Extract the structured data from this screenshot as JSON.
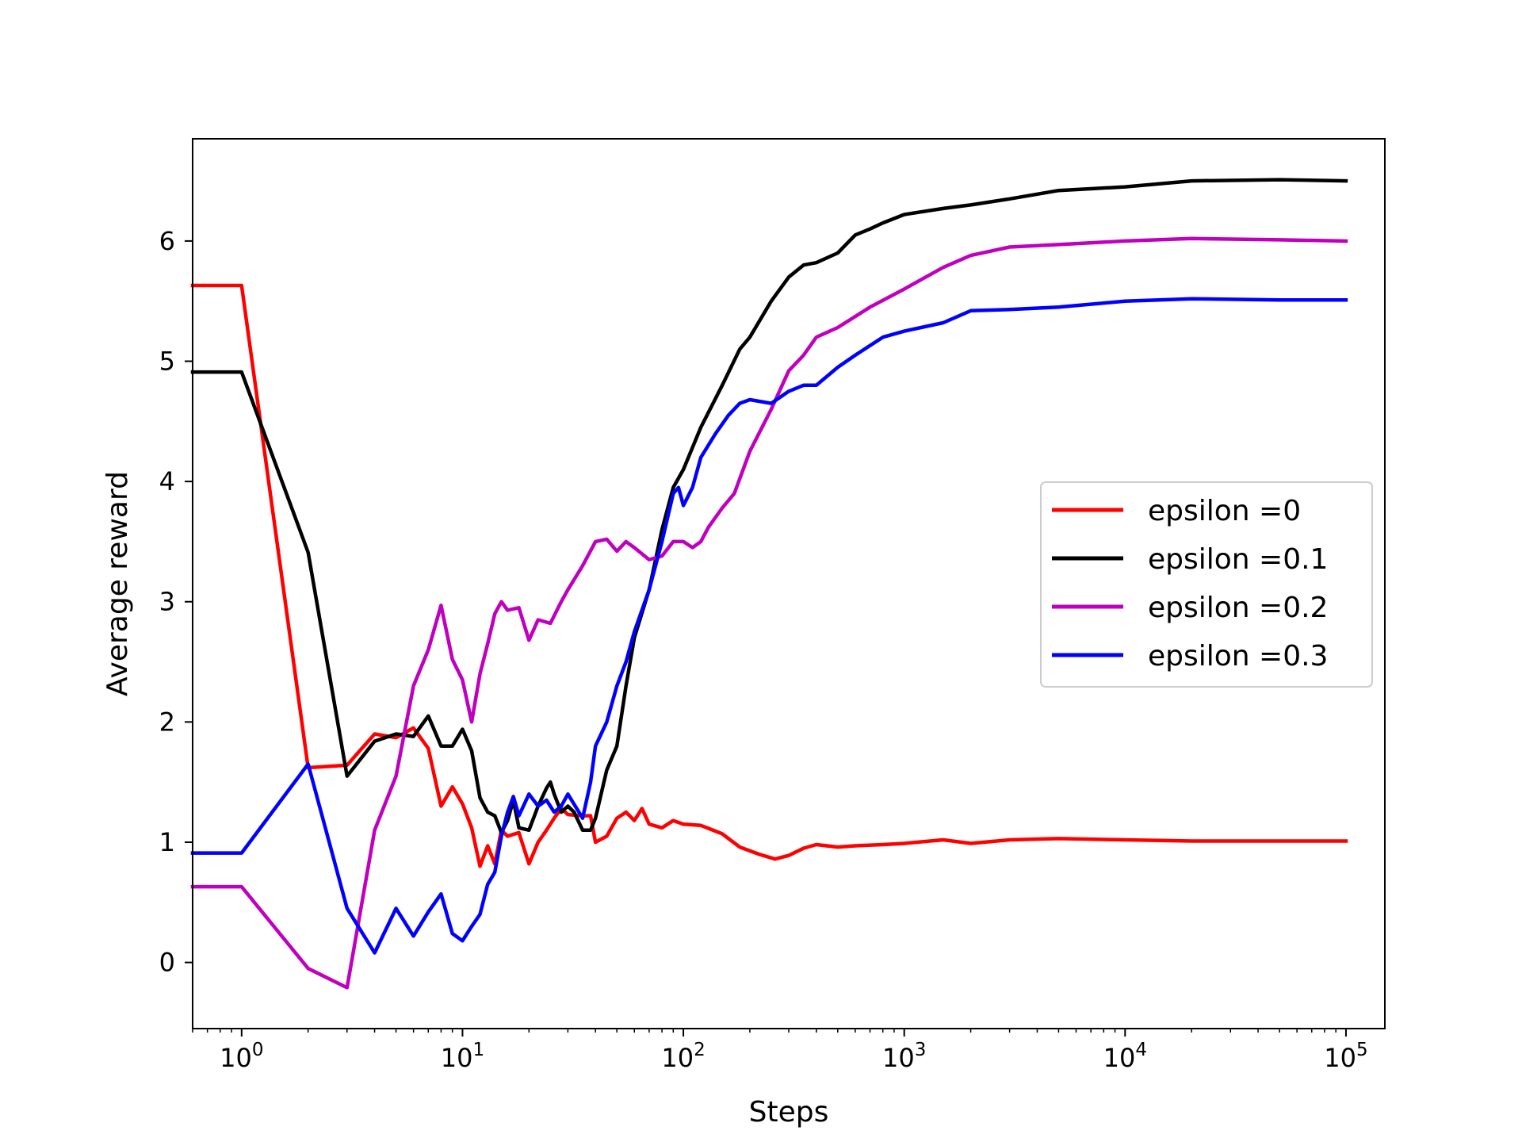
{
  "chart_data": {
    "type": "line",
    "title": "",
    "xlabel": "Steps",
    "ylabel": "Average reward",
    "xscale": "log",
    "xlim": [
      0.6,
      150000
    ],
    "ylim": [
      -0.55,
      6.85
    ],
    "xticks": [
      {
        "value": 1,
        "base": "10",
        "exp": "0"
      },
      {
        "value": 10,
        "base": "10",
        "exp": "1"
      },
      {
        "value": 100,
        "base": "10",
        "exp": "2"
      },
      {
        "value": 1000,
        "base": "10",
        "exp": "3"
      },
      {
        "value": 10000,
        "base": "10",
        "exp": "4"
      },
      {
        "value": 100000,
        "base": "10",
        "exp": "5"
      }
    ],
    "yticks": [
      {
        "value": 0,
        "label": "0"
      },
      {
        "value": 1,
        "label": "1"
      },
      {
        "value": 2,
        "label": "2"
      },
      {
        "value": 3,
        "label": "3"
      },
      {
        "value": 4,
        "label": "4"
      },
      {
        "value": 5,
        "label": "5"
      },
      {
        "value": 6,
        "label": "6"
      }
    ],
    "grid": false,
    "legend_position": "center-right",
    "series": [
      {
        "name": "epsilon =0",
        "color": "#ff0000",
        "points": [
          [
            0.6,
            5.63
          ],
          [
            1,
            5.63
          ],
          [
            2,
            1.62
          ],
          [
            3,
            1.64
          ],
          [
            4,
            1.9
          ],
          [
            5,
            1.87
          ],
          [
            6,
            1.95
          ],
          [
            7,
            1.78
          ],
          [
            8,
            1.3
          ],
          [
            9,
            1.46
          ],
          [
            10,
            1.32
          ],
          [
            11,
            1.12
          ],
          [
            12,
            0.8
          ],
          [
            13,
            0.97
          ],
          [
            14,
            0.82
          ],
          [
            15,
            1.1
          ],
          [
            16,
            1.05
          ],
          [
            18,
            1.08
          ],
          [
            20,
            0.82
          ],
          [
            22,
            1.0
          ],
          [
            24,
            1.1
          ],
          [
            26,
            1.2
          ],
          [
            28,
            1.28
          ],
          [
            30,
            1.23
          ],
          [
            35,
            1.22
          ],
          [
            38,
            1.22
          ],
          [
            40,
            1.0
          ],
          [
            45,
            1.05
          ],
          [
            50,
            1.2
          ],
          [
            55,
            1.25
          ],
          [
            60,
            1.18
          ],
          [
            65,
            1.28
          ],
          [
            70,
            1.15
          ],
          [
            80,
            1.12
          ],
          [
            90,
            1.18
          ],
          [
            100,
            1.15
          ],
          [
            120,
            1.14
          ],
          [
            150,
            1.07
          ],
          [
            180,
            0.96
          ],
          [
            220,
            0.9
          ],
          [
            260,
            0.86
          ],
          [
            300,
            0.89
          ],
          [
            350,
            0.95
          ],
          [
            400,
            0.98
          ],
          [
            500,
            0.96
          ],
          [
            600,
            0.97
          ],
          [
            800,
            0.98
          ],
          [
            1000,
            0.99
          ],
          [
            1500,
            1.02
          ],
          [
            2000,
            0.99
          ],
          [
            3000,
            1.02
          ],
          [
            5000,
            1.03
          ],
          [
            10000,
            1.02
          ],
          [
            20000,
            1.01
          ],
          [
            50000,
            1.01
          ],
          [
            100000,
            1.01
          ]
        ]
      },
      {
        "name": "epsilon =0.1",
        "color": "#000000",
        "points": [
          [
            0.6,
            4.91
          ],
          [
            1,
            4.91
          ],
          [
            2,
            3.41
          ],
          [
            3,
            1.55
          ],
          [
            4,
            1.84
          ],
          [
            5,
            1.9
          ],
          [
            6,
            1.88
          ],
          [
            7,
            2.05
          ],
          [
            8,
            1.8
          ],
          [
            9,
            1.8
          ],
          [
            10,
            1.94
          ],
          [
            11,
            1.76
          ],
          [
            12,
            1.37
          ],
          [
            13,
            1.25
          ],
          [
            14,
            1.22
          ],
          [
            15,
            1.08
          ],
          [
            16,
            1.18
          ],
          [
            17,
            1.35
          ],
          [
            18,
            1.12
          ],
          [
            20,
            1.1
          ],
          [
            22,
            1.3
          ],
          [
            24,
            1.45
          ],
          [
            25,
            1.5
          ],
          [
            26,
            1.4
          ],
          [
            28,
            1.25
          ],
          [
            30,
            1.3
          ],
          [
            32,
            1.25
          ],
          [
            35,
            1.1
          ],
          [
            38,
            1.1
          ],
          [
            40,
            1.2
          ],
          [
            45,
            1.6
          ],
          [
            50,
            1.8
          ],
          [
            55,
            2.3
          ],
          [
            60,
            2.7
          ],
          [
            70,
            3.1
          ],
          [
            80,
            3.6
          ],
          [
            90,
            3.95
          ],
          [
            100,
            4.1
          ],
          [
            120,
            4.45
          ],
          [
            150,
            4.8
          ],
          [
            180,
            5.1
          ],
          [
            200,
            5.2
          ],
          [
            250,
            5.5
          ],
          [
            300,
            5.7
          ],
          [
            350,
            5.8
          ],
          [
            400,
            5.82
          ],
          [
            500,
            5.9
          ],
          [
            600,
            6.05
          ],
          [
            700,
            6.1
          ],
          [
            800,
            6.15
          ],
          [
            1000,
            6.22
          ],
          [
            1500,
            6.27
          ],
          [
            2000,
            6.3
          ],
          [
            3000,
            6.35
          ],
          [
            5000,
            6.42
          ],
          [
            10000,
            6.45
          ],
          [
            20000,
            6.5
          ],
          [
            50000,
            6.51
          ],
          [
            100000,
            6.5
          ]
        ]
      },
      {
        "name": "epsilon =0.2",
        "color": "#bf00bf",
        "points": [
          [
            0.6,
            0.63
          ],
          [
            1,
            0.63
          ],
          [
            2,
            -0.05
          ],
          [
            3,
            -0.21
          ],
          [
            4,
            1.1
          ],
          [
            5,
            1.55
          ],
          [
            6,
            2.3
          ],
          [
            7,
            2.6
          ],
          [
            8,
            2.97
          ],
          [
            9,
            2.52
          ],
          [
            10,
            2.35
          ],
          [
            11,
            2.0
          ],
          [
            12,
            2.4
          ],
          [
            13,
            2.65
          ],
          [
            14,
            2.9
          ],
          [
            15,
            3.0
          ],
          [
            16,
            2.93
          ],
          [
            18,
            2.95
          ],
          [
            20,
            2.68
          ],
          [
            22,
            2.85
          ],
          [
            25,
            2.82
          ],
          [
            28,
            3.0
          ],
          [
            30,
            3.1
          ],
          [
            35,
            3.3
          ],
          [
            40,
            3.5
          ],
          [
            45,
            3.52
          ],
          [
            50,
            3.42
          ],
          [
            55,
            3.5
          ],
          [
            60,
            3.45
          ],
          [
            70,
            3.35
          ],
          [
            80,
            3.38
          ],
          [
            90,
            3.5
          ],
          [
            100,
            3.5
          ],
          [
            110,
            3.45
          ],
          [
            120,
            3.5
          ],
          [
            130,
            3.62
          ],
          [
            150,
            3.78
          ],
          [
            170,
            3.9
          ],
          [
            200,
            4.25
          ],
          [
            250,
            4.6
          ],
          [
            300,
            4.92
          ],
          [
            350,
            5.05
          ],
          [
            400,
            5.2
          ],
          [
            500,
            5.28
          ],
          [
            700,
            5.45
          ],
          [
            1000,
            5.6
          ],
          [
            1500,
            5.78
          ],
          [
            2000,
            5.88
          ],
          [
            3000,
            5.95
          ],
          [
            5000,
            5.97
          ],
          [
            10000,
            6.0
          ],
          [
            20000,
            6.02
          ],
          [
            50000,
            6.01
          ],
          [
            100000,
            6.0
          ]
        ]
      },
      {
        "name": "epsilon =0.3",
        "color": "#0000ff",
        "points": [
          [
            0.6,
            0.91
          ],
          [
            1,
            0.91
          ],
          [
            2,
            1.65
          ],
          [
            3,
            0.45
          ],
          [
            4,
            0.08
          ],
          [
            5,
            0.45
          ],
          [
            6,
            0.22
          ],
          [
            7,
            0.42
          ],
          [
            8,
            0.57
          ],
          [
            9,
            0.24
          ],
          [
            10,
            0.18
          ],
          [
            11,
            0.3
          ],
          [
            12,
            0.4
          ],
          [
            13,
            0.65
          ],
          [
            14,
            0.75
          ],
          [
            15,
            1.05
          ],
          [
            16,
            1.25
          ],
          [
            17,
            1.38
          ],
          [
            18,
            1.22
          ],
          [
            20,
            1.4
          ],
          [
            22,
            1.3
          ],
          [
            24,
            1.35
          ],
          [
            26,
            1.25
          ],
          [
            28,
            1.3
          ],
          [
            30,
            1.4
          ],
          [
            35,
            1.2
          ],
          [
            38,
            1.5
          ],
          [
            40,
            1.8
          ],
          [
            45,
            2.0
          ],
          [
            50,
            2.3
          ],
          [
            55,
            2.5
          ],
          [
            60,
            2.75
          ],
          [
            70,
            3.1
          ],
          [
            80,
            3.5
          ],
          [
            90,
            3.9
          ],
          [
            95,
            3.95
          ],
          [
            100,
            3.8
          ],
          [
            110,
            3.95
          ],
          [
            120,
            4.2
          ],
          [
            140,
            4.4
          ],
          [
            160,
            4.55
          ],
          [
            180,
            4.65
          ],
          [
            200,
            4.68
          ],
          [
            250,
            4.65
          ],
          [
            300,
            4.75
          ],
          [
            350,
            4.8
          ],
          [
            400,
            4.8
          ],
          [
            500,
            4.95
          ],
          [
            600,
            5.05
          ],
          [
            800,
            5.2
          ],
          [
            1000,
            5.25
          ],
          [
            1500,
            5.32
          ],
          [
            2000,
            5.42
          ],
          [
            3000,
            5.43
          ],
          [
            5000,
            5.45
          ],
          [
            10000,
            5.5
          ],
          [
            20000,
            5.52
          ],
          [
            50000,
            5.51
          ],
          [
            100000,
            5.51
          ]
        ]
      }
    ]
  }
}
